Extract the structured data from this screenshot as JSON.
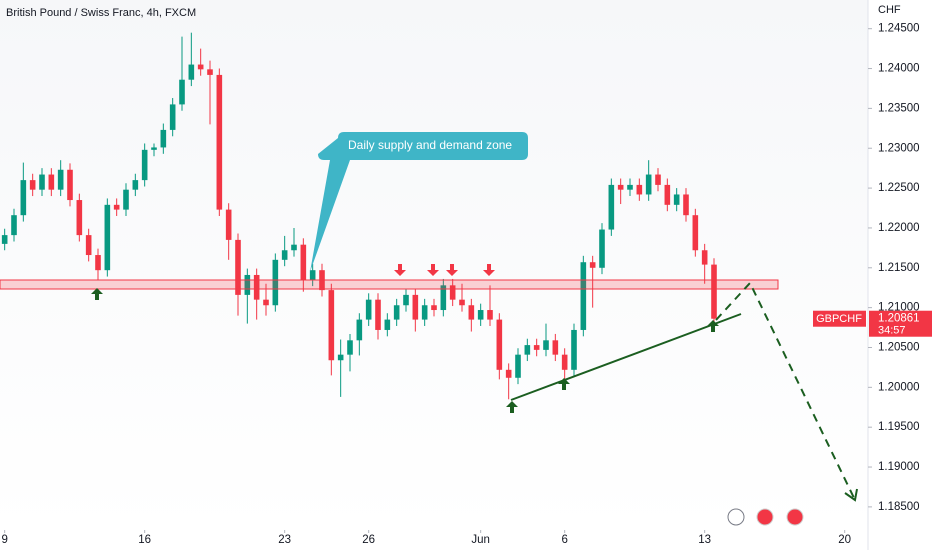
{
  "chart_data": {
    "type": "candlestick",
    "title": "British Pound / Swiss Franc, 4h, FXCM",
    "y_axis_label": "CHF",
    "annotation": "Daily supply and demand zone",
    "symbol": "GBPCHF",
    "last_price": 1.20861,
    "countdown": "34:57",
    "up_color": "#089981",
    "down_color": "#f23645",
    "grid": false,
    "xlim": [
      -0.5,
      92.5
    ],
    "xticks": [
      {
        "value": 0,
        "label": "9"
      },
      {
        "value": 15,
        "label": "16"
      },
      {
        "value": 30,
        "label": "23"
      },
      {
        "value": 39,
        "label": "26"
      },
      {
        "value": 51,
        "label": "Jun"
      },
      {
        "value": 60,
        "label": "6"
      },
      {
        "value": 75,
        "label": "13"
      },
      {
        "value": 90,
        "label": "20"
      }
    ],
    "ylim": [
      1.1821,
      1.2486
    ],
    "yticks": [
      {
        "value": 1.185,
        "label": "1.18500"
      },
      {
        "value": 1.19,
        "label": "1.19000"
      },
      {
        "value": 1.195,
        "label": "1.19500"
      },
      {
        "value": 1.2,
        "label": "1.20000"
      },
      {
        "value": 1.205,
        "label": "1.20500"
      },
      {
        "value": 1.21,
        "label": "1.21000"
      },
      {
        "value": 1.215,
        "label": "1.21500"
      },
      {
        "value": 1.22,
        "label": "1.22000"
      },
      {
        "value": 1.225,
        "label": "1.22500"
      },
      {
        "value": 1.23,
        "label": "1.23000"
      },
      {
        "value": 1.235,
        "label": "1.23500"
      },
      {
        "value": 1.24,
        "label": "1.24000"
      },
      {
        "value": 1.245,
        "label": "1.24500"
      }
    ],
    "open": [
      1.218,
      1.2191,
      1.2216,
      1.226,
      1.2248,
      1.2267,
      1.2248,
      1.2273,
      1.2235,
      1.2191,
      1.2166,
      1.2147,
      1.2229,
      1.2223,
      1.2248,
      1.226,
      1.2298,
      1.2301,
      1.2323,
      1.2355,
      1.2386,
      1.2405,
      1.2399,
      1.2392,
      1.2223,
      1.2185,
      1.2116,
      1.2141,
      1.211,
      1.2103,
      1.216,
      1.2172,
      1.2179,
      1.2135,
      1.2147,
      1.2122,
      1.2034,
      1.2041,
      1.2059,
      1.2085,
      1.211,
      1.2072,
      1.2085,
      1.2103,
      1.2116,
      1.2085,
      1.2103,
      1.2097,
      1.2128,
      1.211,
      1.2103,
      1.2085,
      1.2097,
      1.2085,
      1.2022,
      1.2012,
      1.2041,
      1.2053,
      1.2047,
      1.2059,
      1.2041,
      1.2022,
      1.2072,
      1.2157,
      1.215,
      1.2198,
      1.2254,
      1.2248,
      1.2254,
      1.2242,
      1.2267,
      1.2254,
      1.2229,
      1.2242,
      1.2216,
      1.2172,
      1.2154
    ],
    "high": [
      1.2199,
      1.2224,
      1.2282,
      1.2268,
      1.2275,
      1.2275,
      1.2285,
      1.2281,
      1.2243,
      1.2199,
      1.2174,
      1.2237,
      1.2237,
      1.2256,
      1.2268,
      1.2306,
      1.2306,
      1.2331,
      1.2363,
      1.244,
      1.2445,
      1.2425,
      1.241,
      1.24,
      1.2231,
      1.2193,
      1.2149,
      1.2149,
      1.213,
      1.2168,
      1.219,
      1.22,
      1.2187,
      1.2155,
      1.2155,
      1.213,
      1.206,
      1.2067,
      1.2093,
      1.2118,
      1.2118,
      1.2093,
      1.2111,
      1.2124,
      1.2124,
      1.2111,
      1.2111,
      1.2136,
      1.2136,
      1.213,
      1.2111,
      1.2105,
      1.2128,
      1.2093,
      1.203,
      1.2049,
      1.2061,
      1.2061,
      1.208,
      1.2067,
      1.2049,
      1.208,
      1.2165,
      1.2165,
      1.2206,
      1.2262,
      1.2262,
      1.2262,
      1.2262,
      1.2285,
      1.2275,
      1.2262,
      1.225,
      1.225,
      1.2224,
      1.218,
      1.2162
    ],
    "low": [
      1.2172,
      1.2183,
      1.2208,
      1.224,
      1.224,
      1.224,
      1.224,
      1.2227,
      1.2183,
      1.2158,
      1.2135,
      1.2139,
      1.2215,
      1.2215,
      1.224,
      1.2252,
      1.229,
      1.2293,
      1.2315,
      1.2347,
      1.2378,
      1.2391,
      1.233,
      1.2215,
      1.216,
      1.209,
      1.208,
      1.2085,
      1.209,
      1.2095,
      1.2152,
      1.2164,
      1.212,
      1.2127,
      1.2114,
      1.2015,
      1.1988,
      1.202,
      1.204,
      1.2077,
      1.206,
      1.2064,
      1.2077,
      1.2095,
      1.207,
      1.2077,
      1.2089,
      1.2089,
      1.2102,
      1.2095,
      1.207,
      1.2077,
      1.2077,
      1.201,
      1.1985,
      1.2004,
      1.2033,
      1.2039,
      1.2039,
      1.2033,
      1.2005,
      1.2014,
      1.2064,
      1.21,
      1.2142,
      1.219,
      1.223,
      1.224,
      1.2234,
      1.2234,
      1.2246,
      1.2221,
      1.2221,
      1.2208,
      1.2164,
      1.213,
      1.2078
    ],
    "close": [
      1.2191,
      1.2216,
      1.226,
      1.2248,
      1.2267,
      1.2248,
      1.2273,
      1.2235,
      1.2191,
      1.2166,
      1.2147,
      1.2229,
      1.2223,
      1.2248,
      1.226,
      1.2298,
      1.2301,
      1.2323,
      1.2355,
      1.2386,
      1.2405,
      1.2399,
      1.2392,
      1.2223,
      1.2185,
      1.2116,
      1.2141,
      1.211,
      1.2103,
      1.216,
      1.2172,
      1.2179,
      1.2135,
      1.2147,
      1.2122,
      1.2034,
      1.2041,
      1.2059,
      1.2085,
      1.211,
      1.2072,
      1.2085,
      1.2103,
      1.2116,
      1.2085,
      1.2103,
      1.2097,
      1.2128,
      1.211,
      1.2103,
      1.2085,
      1.2097,
      1.2085,
      1.2022,
      1.2012,
      1.2041,
      1.2053,
      1.2047,
      1.2059,
      1.2041,
      1.2022,
      1.2072,
      1.2157,
      1.215,
      1.2198,
      1.2254,
      1.2248,
      1.2254,
      1.2242,
      1.2267,
      1.2254,
      1.2229,
      1.2242,
      1.2216,
      1.2172,
      1.2154,
      1.20861
    ]
  }
}
